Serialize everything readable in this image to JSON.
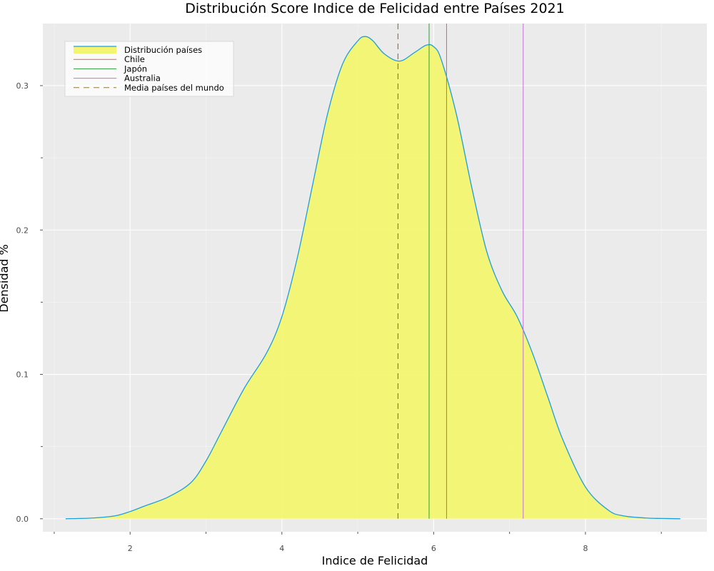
{
  "chart_data": {
    "type": "area",
    "title": "Distribución Score Indice de Felicidad entre Países 2021",
    "xlabel": "Indice de Felicidad",
    "ylabel": "Densidad %",
    "xlim": [
      0.85,
      9.6
    ],
    "ylim": [
      -0.009,
      0.343
    ],
    "x_ticks": [
      2,
      4,
      6,
      8
    ],
    "x_tick_labels": [
      "2",
      "4",
      "6",
      "8"
    ],
    "x_minor_ticks": [
      1,
      3,
      5,
      7,
      9
    ],
    "y_ticks": [
      0.0,
      0.1,
      0.2,
      0.3
    ],
    "y_tick_labels": [
      "0.0",
      "0.1",
      "0.2",
      "0.3"
    ],
    "y_minor_ticks": [
      0.05,
      0.15,
      0.25
    ],
    "grid": true,
    "legend_position": "top-left",
    "colors": {
      "background": "#ebebeb",
      "grid": "#ffffff",
      "fill": "#f3f571",
      "line": "#1e9fd8",
      "chile": "#e8604c",
      "japon": "#2e9e3a",
      "australia": "#c56fd3",
      "media": "#8f7d35"
    },
    "series": [
      {
        "name": "Distribución países",
        "kind": "density",
        "x": [
          1.15,
          1.5,
          1.8,
          2.0,
          2.2,
          2.5,
          2.8,
          3.0,
          3.2,
          3.5,
          3.8,
          4.0,
          4.2,
          4.4,
          4.6,
          4.8,
          5.0,
          5.1,
          5.2,
          5.35,
          5.55,
          5.75,
          5.9,
          6.0,
          6.1,
          6.3,
          6.5,
          6.7,
          6.9,
          7.1,
          7.3,
          7.5,
          7.7,
          8.0,
          8.3,
          8.5,
          8.8,
          9.0,
          9.25
        ],
        "y": [
          0.0,
          0.0005,
          0.002,
          0.005,
          0.009,
          0.015,
          0.025,
          0.04,
          0.06,
          0.09,
          0.115,
          0.14,
          0.18,
          0.23,
          0.28,
          0.315,
          0.331,
          0.334,
          0.331,
          0.322,
          0.317,
          0.323,
          0.328,
          0.327,
          0.318,
          0.28,
          0.23,
          0.185,
          0.158,
          0.14,
          0.115,
          0.085,
          0.055,
          0.022,
          0.006,
          0.002,
          0.0005,
          0.0002,
          0.0
        ]
      },
      {
        "name": "Chile",
        "kind": "vline",
        "x": 6.17
      },
      {
        "name": "Japón",
        "kind": "vline",
        "x": 5.94
      },
      {
        "name": "Australia",
        "kind": "vline",
        "x": 7.18
      },
      {
        "name": "Media países del mundo",
        "kind": "vline",
        "dashed": true,
        "x": 5.53
      }
    ]
  }
}
